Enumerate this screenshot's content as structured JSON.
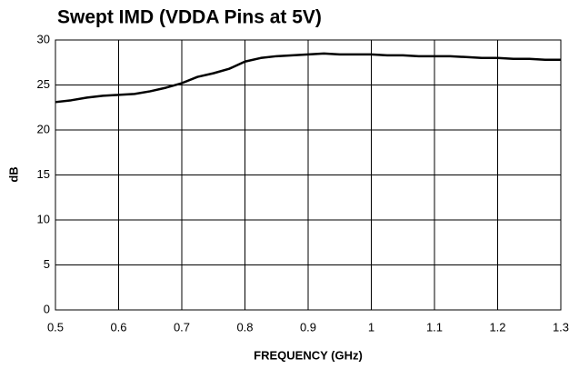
{
  "chart_data": {
    "type": "line",
    "title": "Swept IMD (VDDA Pins at 5V)",
    "x_label": "FREQUENCY (GHz)",
    "y_label": "dB",
    "x": [
      0.5,
      0.525,
      0.55,
      0.575,
      0.6,
      0.625,
      0.65,
      0.675,
      0.7,
      0.725,
      0.75,
      0.775,
      0.8,
      0.825,
      0.85,
      0.875,
      0.9,
      0.925,
      0.95,
      0.975,
      1.0,
      1.025,
      1.05,
      1.075,
      1.1,
      1.125,
      1.15,
      1.175,
      1.2,
      1.225,
      1.25,
      1.275,
      1.3
    ],
    "series": [
      {
        "color": "#000000",
        "values": [
          23.1,
          23.3,
          23.6,
          23.8,
          23.9,
          24.0,
          24.3,
          24.7,
          25.2,
          25.9,
          26.3,
          26.8,
          27.6,
          28.0,
          28.2,
          28.3,
          28.4,
          28.5,
          28.4,
          28.4,
          28.4,
          28.3,
          28.3,
          28.2,
          28.2,
          28.2,
          28.1,
          28.0,
          28.0,
          27.9,
          27.9,
          27.8,
          27.8
        ]
      }
    ],
    "xlim": [
      0.5,
      1.3
    ],
    "xticks": [
      0.5,
      0.6,
      0.7,
      0.8,
      0.9,
      1,
      1.1,
      1.2,
      1.3
    ],
    "ylim": [
      0,
      30
    ],
    "yticks": [
      0,
      5,
      10,
      15,
      20,
      25,
      30
    ],
    "grid": true
  }
}
